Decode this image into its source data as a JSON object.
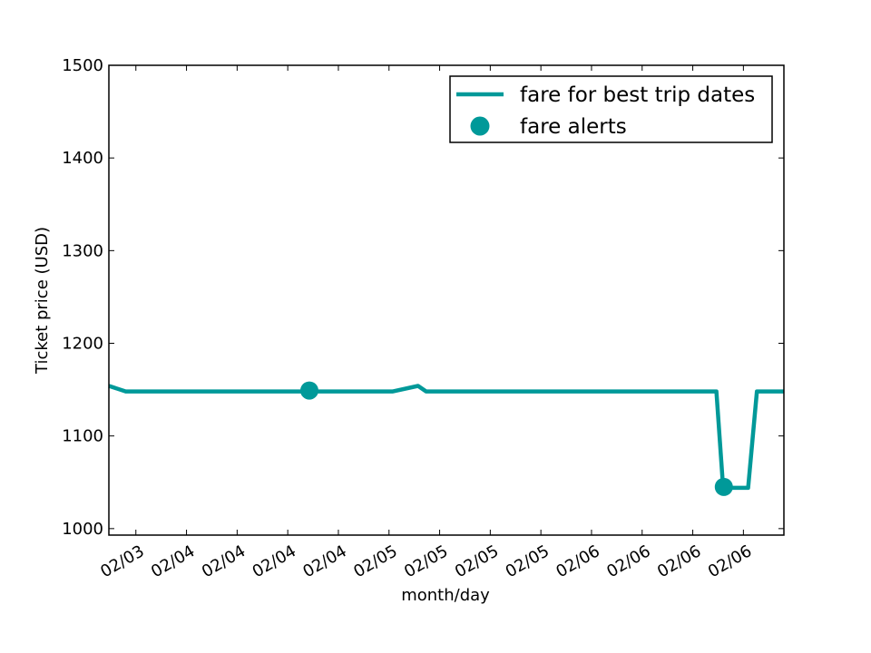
{
  "chart_data": {
    "type": "line",
    "xlabel": "month/day",
    "ylabel": "Ticket price (USD)",
    "ylim": [
      993,
      1500
    ],
    "xlim": [
      0,
      1.0
    ],
    "y_ticks": [
      1000,
      1100,
      1200,
      1300,
      1400,
      1500
    ],
    "x_ticks": [
      {
        "x": 0.04,
        "label": "02/03"
      },
      {
        "x": 0.115,
        "label": "02/04"
      },
      {
        "x": 0.19,
        "label": "02/04"
      },
      {
        "x": 0.265,
        "label": "02/04"
      },
      {
        "x": 0.34,
        "label": "02/04"
      },
      {
        "x": 0.415,
        "label": "02/05"
      },
      {
        "x": 0.49,
        "label": "02/05"
      },
      {
        "x": 0.565,
        "label": "02/05"
      },
      {
        "x": 0.64,
        "label": "02/05"
      },
      {
        "x": 0.715,
        "label": "02/06"
      },
      {
        "x": 0.79,
        "label": "02/06"
      },
      {
        "x": 0.865,
        "label": "02/06"
      },
      {
        "x": 0.94,
        "label": "02/06"
      }
    ],
    "series": [
      {
        "name": "fare for best trip dates",
        "color": "#009999",
        "style": "line",
        "x": [
          0.0,
          0.025,
          0.42,
          0.458,
          0.47,
          0.9,
          0.91,
          0.947,
          0.96,
          1.0
        ],
        "y": [
          1154,
          1148,
          1148,
          1154,
          1148,
          1148,
          1044,
          1044,
          1148,
          1148
        ]
      },
      {
        "name": "fare alerts",
        "color": "#009999",
        "style": "marker",
        "x": [
          0.297,
          0.911
        ],
        "y": [
          1149,
          1045
        ]
      }
    ],
    "legend_position": "top-right",
    "grid": false
  }
}
